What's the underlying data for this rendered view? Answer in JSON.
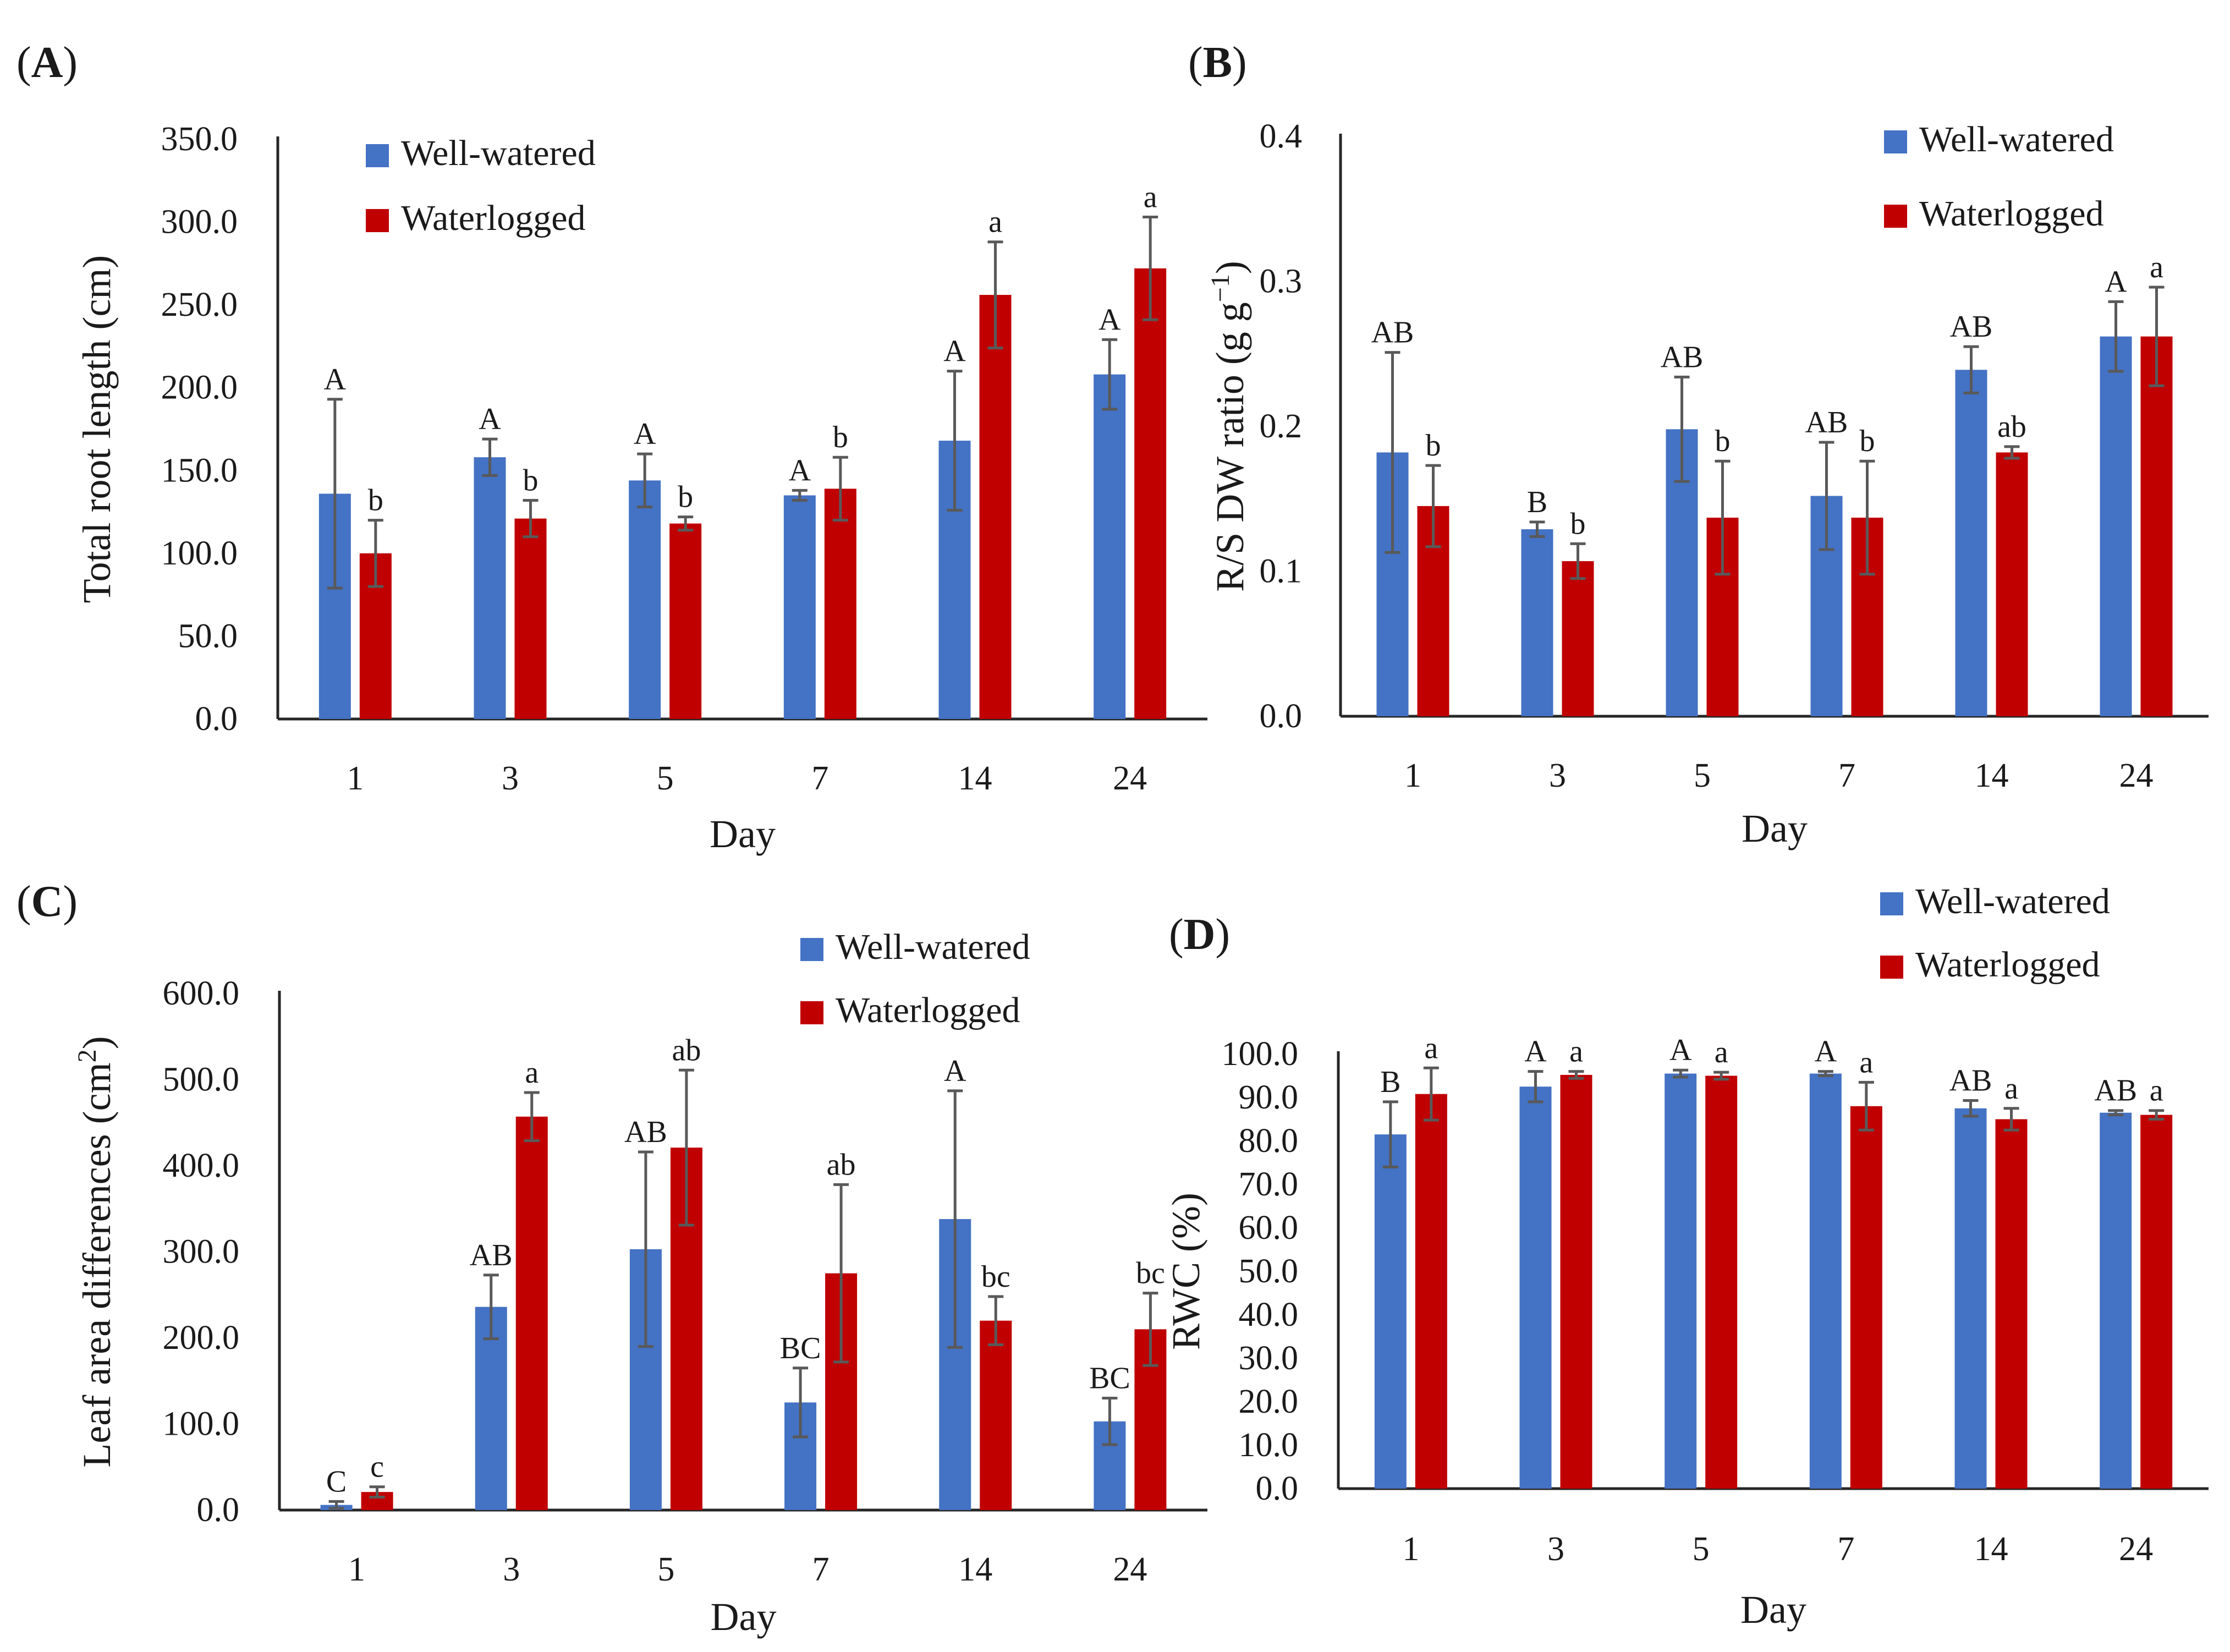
{
  "colors": {
    "well_watered": "#4472C4",
    "waterlogged": "#C00000",
    "axis": "#262626",
    "errorbar": "#595959"
  },
  "chart_data": [
    {
      "panel": "(A)",
      "type": "bar",
      "categories": [
        "1",
        "3",
        "5",
        "7",
        "14",
        "24"
      ],
      "xlabel": "Day",
      "ylabel": "Total root length (cm)",
      "ylim": [
        0,
        350
      ],
      "yticks": [
        "0.0",
        "50.0",
        "100.0",
        "150.0",
        "200.0",
        "250.0",
        "300.0",
        "350.0"
      ],
      "legend": "top-left",
      "series": [
        {
          "name": "Well-watered",
          "values": [
            136,
            158,
            144,
            135,
            168,
            208
          ],
          "errors": [
            57,
            11,
            16,
            3,
            42,
            21
          ],
          "letters": [
            "A",
            "A",
            "A",
            "A",
            "A",
            "A"
          ]
        },
        {
          "name": "Waterlogged",
          "values": [
            100,
            121,
            118,
            139,
            256,
            272
          ],
          "errors": [
            20,
            11,
            4,
            19,
            32,
            31
          ],
          "letters": [
            "b",
            "b",
            "b",
            "b",
            "a",
            "a"
          ]
        }
      ]
    },
    {
      "panel": "(B)",
      "type": "bar",
      "categories": [
        "1",
        "3",
        "5",
        "7",
        "14",
        "24"
      ],
      "xlabel": "Day",
      "ylabel": "R/S DW ratio (g g",
      "ylabel_sup": "−1",
      "ylabel_end": ")",
      "ylim": [
        0,
        0.4
      ],
      "yticks": [
        "0.0",
        "0.1",
        "0.2",
        "0.3",
        "0.4"
      ],
      "legend": "top-right",
      "series": [
        {
          "name": "Well-watered",
          "values": [
            0.182,
            0.129,
            0.198,
            0.152,
            0.239,
            0.262
          ],
          "errors": [
            0.069,
            0.005,
            0.036,
            0.037,
            0.016,
            0.024
          ],
          "letters": [
            "AB",
            "B",
            "AB",
            "AB",
            "AB",
            "A"
          ]
        },
        {
          "name": "Waterlogged",
          "values": [
            0.145,
            0.107,
            0.137,
            0.137,
            0.182,
            0.262
          ],
          "errors": [
            0.028,
            0.012,
            0.039,
            0.039,
            0.004,
            0.034
          ],
          "letters": [
            "b",
            "b",
            "b",
            "b",
            "ab",
            "a"
          ]
        }
      ]
    },
    {
      "panel": "(C)",
      "type": "bar",
      "categories": [
        "1",
        "3",
        "5",
        "7",
        "14",
        "24"
      ],
      "xlabel": "Day",
      "ylabel": "Leaf area differences (cm",
      "ylabel_sup": "2",
      "ylabel_end": ")",
      "ylim": [
        0,
        600
      ],
      "yticks": [
        "0.0",
        "100.0",
        "200.0",
        "300.0",
        "400.0",
        "500.0",
        "600.0"
      ],
      "legend": "top-right",
      "series": [
        {
          "name": "Well-watered",
          "values": [
            6,
            236,
            303,
            125,
            338,
            103
          ],
          "errors": [
            4,
            37,
            113,
            40,
            149,
            27
          ],
          "letters": [
            "C",
            "AB",
            "AB",
            "BC",
            "A",
            "BC"
          ]
        },
        {
          "name": "Waterlogged",
          "values": [
            21,
            457,
            421,
            275,
            220,
            210
          ],
          "errors": [
            6,
            28,
            90,
            103,
            28,
            42
          ],
          "letters": [
            "c",
            "a",
            "ab",
            "ab",
            "bc",
            "bc"
          ]
        }
      ]
    },
    {
      "panel": "(D)",
      "type": "bar",
      "categories": [
        "1",
        "3",
        "5",
        "7",
        "14",
        "24"
      ],
      "xlabel": "Day",
      "ylabel": "RWC (%)",
      "ylim": [
        0,
        100
      ],
      "yticks": [
        "0.0",
        "10.0",
        "20.0",
        "30.0",
        "40.0",
        "50.0",
        "60.0",
        "70.0",
        "80.0",
        "90.0",
        "100.0"
      ],
      "legend": "top-right",
      "series": [
        {
          "name": "Well-watered",
          "values": [
            81.5,
            92.5,
            95.5,
            95.5,
            87.5,
            86.5
          ],
          "errors": [
            7.5,
            3.5,
            0.8,
            0.5,
            1.8,
            0.5
          ],
          "letters": [
            "B",
            "A",
            "A",
            "A",
            "AB",
            "AB"
          ]
        },
        {
          "name": "Waterlogged",
          "values": [
            90.8,
            95.2,
            95,
            88,
            85,
            86
          ],
          "errors": [
            6,
            0.8,
            0.8,
            5.5,
            2.5,
            1
          ],
          "letters": [
            "a",
            "a",
            "a",
            "a",
            "a",
            "a"
          ]
        }
      ]
    }
  ]
}
